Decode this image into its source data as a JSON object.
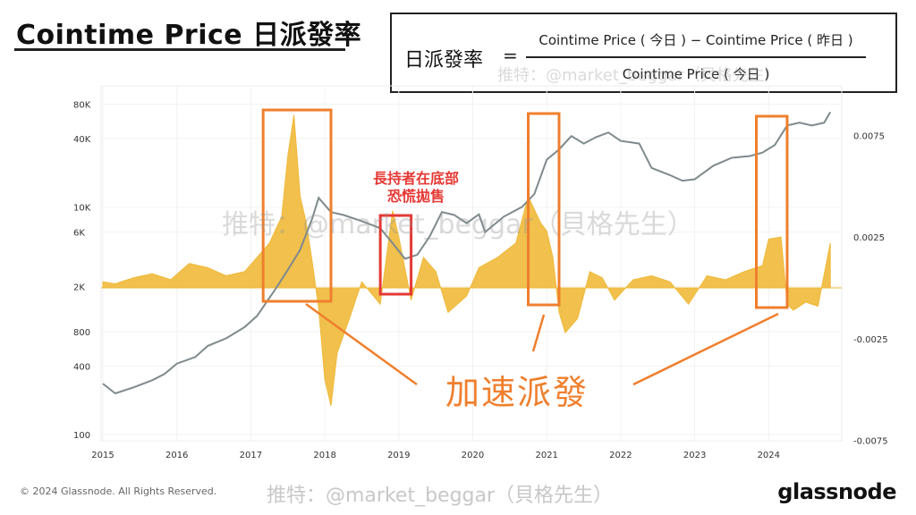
{
  "title": "Cointime Price 日派發率",
  "formula": {
    "lhs": "日派發率",
    "equals": "=",
    "numerator": "Cointime Price ( 今日 ) − Cointime Price ( 昨日 )",
    "denominator": "Cointime Price ( 今日 )"
  },
  "annotations": {
    "red_note_line1": "長持者在底部",
    "red_note_line2": "恐慌拋售",
    "orange_note": "加速派發",
    "watermark": "推特：@market_beggar（貝格先生）",
    "watermark_top": "推特：@market_beggar（貝格先生）"
  },
  "footer": {
    "copyright": "© 2024 Glassnode. All Rights Reserved.",
    "watermark": "推特：@market_beggar（貝格先生）",
    "brand": "glassnode"
  },
  "colors": {
    "price": "#7f8a8c",
    "rate": "#f0b93a",
    "box": "#ef7f2d",
    "red_box": "#e53935",
    "red_text": "#e53935"
  },
  "chart_data": {
    "type": "line",
    "x_ticks": [
      "2015",
      "2016",
      "2017",
      "2018",
      "2019",
      "2020",
      "2021",
      "2022",
      "2023",
      "2024"
    ],
    "y_left_ticks": [
      "80K",
      "40K",
      "10K",
      "6K",
      "2K",
      "800",
      "400",
      "100"
    ],
    "y_left_scale": "log",
    "y_right_ticks": [
      "0.0075",
      "0.0025",
      "-0.0025",
      "-0.0075"
    ],
    "y_right_range": [
      -0.0075,
      0.0075
    ],
    "series": [
      {
        "axis": "left",
        "dates": [
          "2015-01",
          "2015-03",
          "2015-06",
          "2015-09",
          "2015-11",
          "2016-01",
          "2016-04",
          "2016-06",
          "2016-09",
          "2016-12",
          "2017-02",
          "2017-05",
          "2017-07",
          "2017-09",
          "2017-11",
          "2017-12",
          "2018-02",
          "2018-04",
          "2018-07",
          "2018-10",
          "2018-12",
          "2019-02",
          "2019-04",
          "2019-06",
          "2019-08",
          "2019-10",
          "2019-12",
          "2020-02",
          "2020-03",
          "2020-06",
          "2020-09",
          "2020-11",
          "2021-01",
          "2021-03",
          "2021-05",
          "2021-07",
          "2021-09",
          "2021-11",
          "2022-01",
          "2022-04",
          "2022-06",
          "2022-09",
          "2022-11",
          "2023-01",
          "2023-04",
          "2023-07",
          "2023-10",
          "2023-12",
          "2024-02",
          "2024-04",
          "2024-06",
          "2024-08",
          "2024-10",
          "2024-11"
        ],
        "values": [
          280,
          230,
          260,
          300,
          340,
          420,
          480,
          600,
          700,
          880,
          1100,
          1900,
          2800,
          4200,
          8000,
          12000,
          9000,
          8500,
          7500,
          6500,
          4800,
          3500,
          3800,
          5500,
          9000,
          8500,
          7200,
          8600,
          6000,
          8200,
          10000,
          13000,
          26000,
          32000,
          42000,
          36000,
          41000,
          45000,
          38000,
          36000,
          22000,
          19000,
          17000,
          17500,
          23000,
          27000,
          28000,
          30000,
          35000,
          52000,
          55000,
          52000,
          55000,
          68000
        ]
      },
      {
        "axis": "right",
        "dates": [
          "2015-01",
          "2015-03",
          "2015-06",
          "2015-09",
          "2015-12",
          "2016-03",
          "2016-06",
          "2016-09",
          "2016-12",
          "2017-02",
          "2017-04",
          "2017-06",
          "2017-07",
          "2017-08",
          "2017-09",
          "2017-10",
          "2017-11",
          "2017-12",
          "2018-01",
          "2018-02",
          "2018-03",
          "2018-05",
          "2018-07",
          "2018-10",
          "2018-12",
          "2019-01",
          "2019-03",
          "2019-05",
          "2019-07",
          "2019-09",
          "2019-12",
          "2020-02",
          "2020-05",
          "2020-08",
          "2020-10",
          "2020-12",
          "2021-01",
          "2021-02",
          "2021-03",
          "2021-04",
          "2021-06",
          "2021-08",
          "2021-10",
          "2021-12",
          "2022-03",
          "2022-06",
          "2022-09",
          "2022-12",
          "2023-03",
          "2023-06",
          "2023-09",
          "2023-12",
          "2024-01",
          "2024-03",
          "2024-04",
          "2024-05",
          "2024-07",
          "2024-09",
          "2024-11"
        ],
        "values": [
          0.0003,
          0.0002,
          0.0005,
          0.0007,
          0.0004,
          0.0012,
          0.001,
          0.0006,
          0.0008,
          0.0015,
          0.0022,
          0.0035,
          0.0065,
          0.0085,
          0.0045,
          0.0032,
          0.0012,
          -0.001,
          -0.0045,
          -0.0058,
          -0.0032,
          -0.0015,
          0.0003,
          -0.0008,
          0.0038,
          0.0025,
          -0.0006,
          0.0015,
          0.0008,
          -0.0012,
          -0.0004,
          0.001,
          0.0015,
          0.0022,
          0.0045,
          0.0032,
          0.0028,
          0.0015,
          -0.0012,
          -0.0022,
          -0.0015,
          0.0008,
          0.0005,
          -0.0006,
          0.0004,
          0.0006,
          0.0003,
          -0.0008,
          0.0006,
          0.0004,
          0.0008,
          0.0011,
          0.0024,
          0.0025,
          -0.0008,
          -0.0011,
          -0.0007,
          -0.0009,
          0.0022
        ]
      }
    ],
    "annotations": [
      "長持者在底部恐慌拋售",
      "加速派發"
    ]
  }
}
